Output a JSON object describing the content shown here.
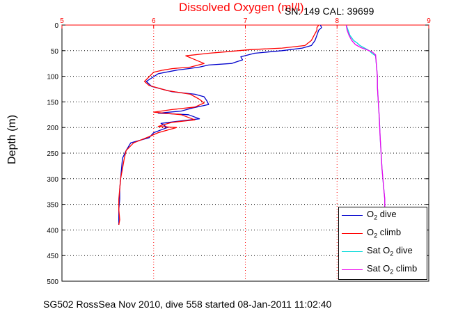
{
  "chart_data": {
    "type": "line",
    "title": "Dissolved Oxygen (ml/l)",
    "serial_text": "SN: 149  CAL: 39699",
    "ylabel": "Depth (m)",
    "caption": "SG502 RossSea Nov 2010, dive 558 started 08-Jan-2011 11:02:40",
    "x_axis_position": "top",
    "xlim": [
      5,
      9
    ],
    "ylim": [
      0,
      500
    ],
    "y_inverted": true,
    "xticks": [
      5,
      6,
      7,
      8,
      9
    ],
    "yticks": [
      0,
      50,
      100,
      150,
      200,
      250,
      300,
      350,
      400,
      450,
      500
    ],
    "grid": true,
    "legend_position": "bottom-right",
    "series": [
      {
        "name": "O2 dive",
        "label_main": "O",
        "label_sub": "2",
        "label_tail": " dive",
        "color": "#0000cc",
        "x": [
          7.82,
          7.83,
          7.8,
          7.78,
          7.76,
          7.72,
          7.62,
          7.4,
          7.1,
          6.95,
          6.97,
          6.9,
          6.85,
          6.6,
          6.5,
          6.38,
          6.25,
          6.05,
          5.92,
          5.98,
          6.2,
          6.45,
          6.55,
          6.58,
          6.6,
          6.42,
          6.3,
          6.05,
          6.38,
          6.5,
          6.25,
          6.08,
          6.15,
          6.0,
          5.95,
          5.75,
          5.7,
          5.66,
          5.65,
          5.64,
          5.63,
          5.63,
          5.62,
          5.62,
          5.62
        ],
        "y": [
          0,
          5,
          10,
          20,
          30,
          40,
          45,
          50,
          55,
          62,
          68,
          72,
          75,
          78,
          82,
          85,
          88,
          95,
          110,
          120,
          130,
          135,
          140,
          148,
          155,
          162,
          168,
          172,
          175,
          183,
          188,
          192,
          200,
          210,
          220,
          230,
          245,
          260,
          280,
          300,
          320,
          340,
          360,
          380,
          390
        ]
      },
      {
        "name": "O2 climb",
        "label_main": "O",
        "label_sub": "2",
        "label_tail": " climb",
        "color": "#ff0000",
        "x": [
          7.8,
          7.78,
          7.78,
          7.75,
          7.72,
          7.65,
          7.4,
          7.05,
          6.8,
          6.6,
          6.35,
          6.55,
          6.4,
          6.2,
          6.1,
          6.0,
          5.9,
          5.95,
          6.15,
          6.4,
          6.45,
          6.5,
          6.55,
          6.45,
          6.2,
          6.0,
          6.3,
          6.45,
          6.2,
          6.1,
          6.05,
          6.25,
          6.05,
          5.95,
          5.78,
          5.7,
          5.68,
          5.66,
          5.64,
          5.63,
          5.62,
          5.62,
          5.63,
          5.62
        ],
        "y": [
          0,
          5,
          10,
          20,
          30,
          40,
          45,
          48,
          52,
          55,
          60,
          75,
          82,
          85,
          88,
          92,
          110,
          118,
          128,
          135,
          140,
          145,
          152,
          160,
          165,
          170,
          175,
          185,
          190,
          195,
          198,
          200,
          210,
          218,
          230,
          245,
          260,
          280,
          300,
          320,
          340,
          360,
          380,
          390
        ]
      },
      {
        "name": "Sat O2 dive",
        "label_main": "Sat O",
        "label_sub": "2",
        "label_tail": " dive",
        "color": "#00d8d8",
        "x": [
          8.1,
          8.12,
          8.14,
          8.18,
          8.22,
          8.25,
          8.3,
          8.35,
          8.38,
          8.42,
          8.43,
          8.44,
          8.44,
          8.45,
          8.46,
          8.47,
          8.48,
          8.49,
          8.5,
          8.51,
          8.52,
          8.52
        ],
        "y": [
          0,
          10,
          20,
          30,
          35,
          40,
          45,
          50,
          55,
          60,
          80,
          100,
          120,
          150,
          180,
          220,
          250,
          280,
          300,
          320,
          340,
          355
        ]
      },
      {
        "name": "Sat O2 climb",
        "label_main": "Sat O",
        "label_sub": "2",
        "label_tail": " climb",
        "color": "#ee00ee",
        "x": [
          8.1,
          8.11,
          8.13,
          8.16,
          8.2,
          8.26,
          8.32,
          8.38,
          8.42,
          8.43,
          8.44,
          8.44,
          8.45,
          8.46,
          8.47,
          8.48,
          8.49,
          8.5,
          8.51,
          8.52,
          8.52
        ],
        "y": [
          0,
          10,
          20,
          30,
          38,
          44,
          48,
          52,
          58,
          80,
          100,
          120,
          150,
          180,
          220,
          250,
          280,
          300,
          320,
          340,
          355
        ]
      }
    ]
  }
}
